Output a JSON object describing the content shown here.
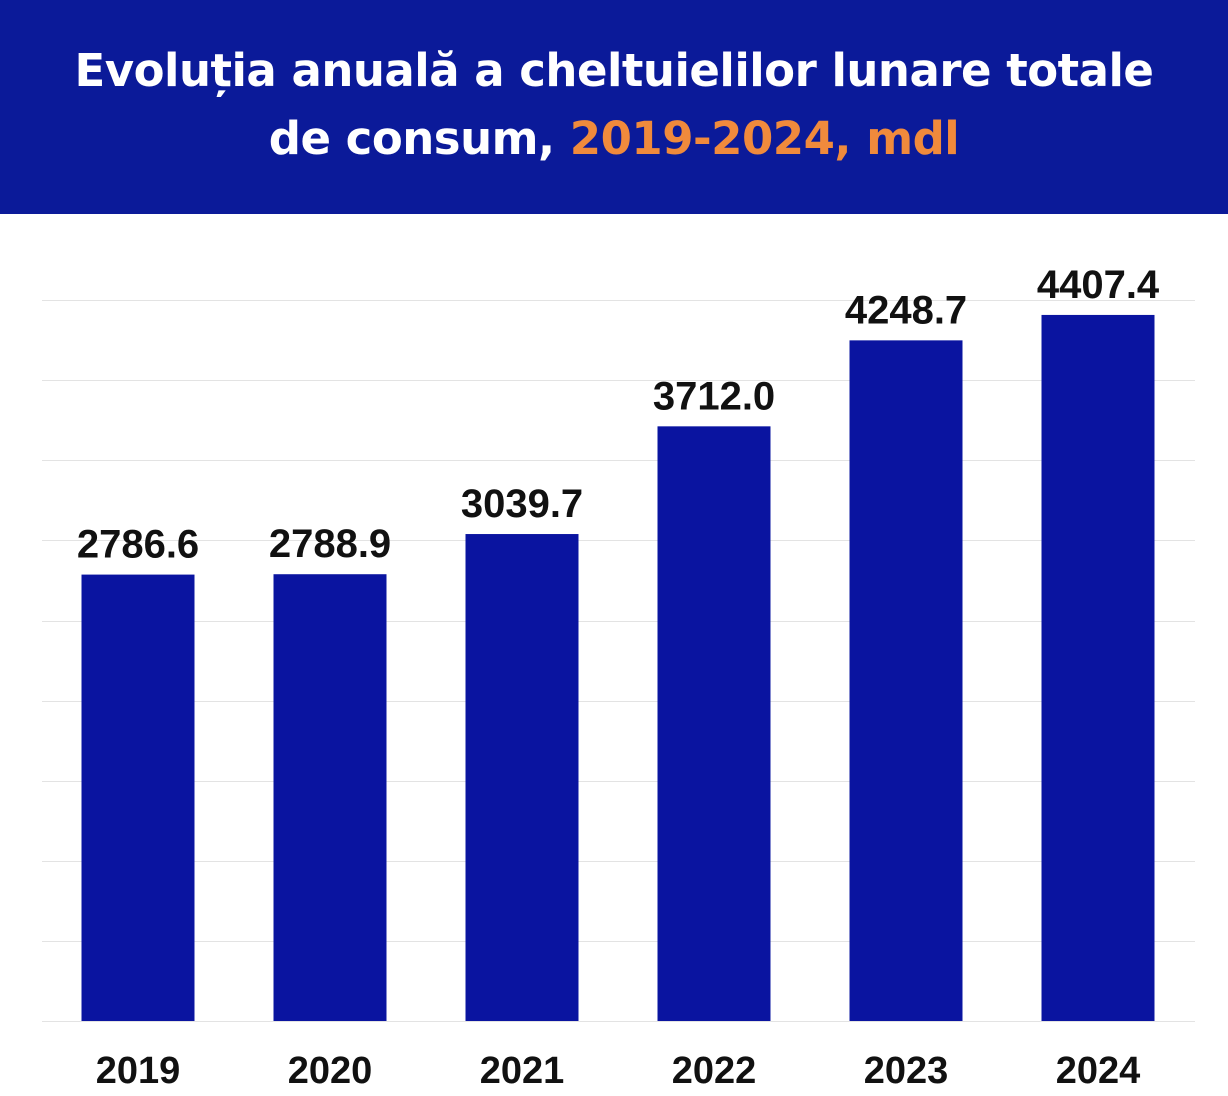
{
  "colors": {
    "banner": "#0b1a99",
    "bar": "#0a14a0",
    "title_text": "#ffffff",
    "title_accent": "#f08a3c",
    "background": "#ffffff",
    "gridline": "#e3e3e3",
    "label_text": "#111111"
  },
  "header": {
    "title_line1": "Evoluția anuală a cheltuielilor lunare totale",
    "title_line2_prefix": "de consum, ",
    "title_line2_accent": "2019-2024, mdl"
  },
  "chart_data": {
    "type": "bar",
    "title": "Evoluția anuală a cheltuielilor lunare totale de consum, 2019-2024, mdl",
    "categories": [
      "2019",
      "2020",
      "2021",
      "2022",
      "2023",
      "2024"
    ],
    "values": [
      2786.6,
      2788.9,
      3039.7,
      3712.0,
      4248.7,
      4407.4
    ],
    "value_labels": [
      "2786.6",
      "2788.9",
      "3039.7",
      "3712.0",
      "4248.7",
      "4407.4"
    ],
    "xlabel": "",
    "ylabel": "",
    "ylim": [
      0,
      4500
    ],
    "grid": true,
    "legend": "none"
  }
}
